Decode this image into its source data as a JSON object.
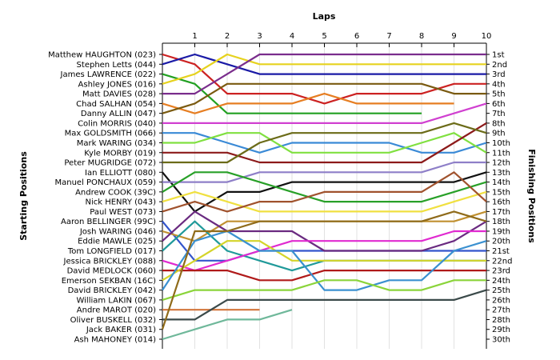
{
  "chart_data": {
    "type": "line",
    "title": "",
    "xlabel": "Laps",
    "ylabel_left": "Starting Positions",
    "ylabel_right": "Finishing Positions",
    "x": [
      0,
      1,
      2,
      3,
      4,
      5,
      6,
      7,
      8,
      9,
      10
    ],
    "x_tick_labels": [
      "1",
      "2",
      "3",
      "4",
      "5",
      "6",
      "7",
      "8",
      "9",
      "10"
    ],
    "ylim": [
      1,
      30
    ],
    "y_inverted": true,
    "grid": true,
    "finishing_labels": [
      "1st",
      "2nd",
      "3rd",
      "4th",
      "5th",
      "6th",
      "7th",
      "8th",
      "9th",
      "10th",
      "11th",
      "12th",
      "13th",
      "14th",
      "15th",
      "16th",
      "17th",
      "18th",
      "19th",
      "20th",
      "21st",
      "22nd",
      "23rd",
      "24th",
      "25th",
      "26th",
      "27th",
      "28th",
      "29th",
      "30th"
    ],
    "series": [
      {
        "name": "Matthew HAUGHTON (023)",
        "color": "#cc2222",
        "positions": [
          1,
          2,
          5,
          5,
          5,
          6,
          5,
          5,
          5,
          4,
          4
        ]
      },
      {
        "name": "Stephen Letts (044)",
        "color": "#1a1aa6",
        "positions": [
          2,
          1,
          2,
          3,
          3,
          3,
          3,
          3,
          3,
          3,
          3
        ]
      },
      {
        "name": "James LAWRENCE (022)",
        "color": "#22a022",
        "positions": [
          3,
          4,
          7,
          7,
          7,
          7,
          7,
          7,
          7
        ]
      },
      {
        "name": "Ashley JONES (016)",
        "color": "#e6d21e",
        "positions": [
          4,
          3,
          1,
          2,
          2,
          2,
          2,
          2,
          2,
          2,
          2
        ]
      },
      {
        "name": "Matt DAVIES (028)",
        "color": "#7a2d8c",
        "positions": [
          5,
          5,
          3,
          1,
          1,
          1,
          1,
          1,
          1,
          1,
          1
        ]
      },
      {
        "name": "Chad SALHAN (054)",
        "color": "#e67e22",
        "positions": [
          6,
          7,
          6,
          6,
          6,
          5,
          6,
          6,
          6,
          6
        ]
      },
      {
        "name": "Danny ALLIN (047)",
        "color": "#7a5a10",
        "positions": [
          7,
          6,
          4,
          4,
          4,
          4,
          4,
          4,
          4,
          5,
          5
        ]
      },
      {
        "name": "Colin MORRIS (040)",
        "color": "#d040d0",
        "positions": [
          8,
          8,
          8,
          8,
          8,
          8,
          8,
          8,
          8,
          7,
          6
        ]
      },
      {
        "name": "Max GOLDSMITH (066)",
        "color": "#3a8ad6",
        "positions": [
          9,
          9,
          10,
          11,
          10,
          10,
          10,
          10,
          11,
          11,
          10
        ]
      },
      {
        "name": "Mark WARING (034)",
        "color": "#80e040",
        "positions": [
          10,
          10,
          9,
          9,
          11,
          11,
          11,
          11,
          10,
          9,
          11
        ]
      },
      {
        "name": "Kyle MORBY (019)",
        "color": "#8c1a1a",
        "positions": [
          11,
          11,
          11,
          12,
          12,
          12,
          12,
          12,
          12,
          10,
          8
        ]
      },
      {
        "name": "Peter MUGRIDGE (072)",
        "color": "#6b6b18",
        "positions": [
          12,
          12,
          12,
          10,
          9,
          9,
          9,
          9,
          9,
          8,
          9
        ]
      },
      {
        "name": "Ian ELLIOTT (080)",
        "color": "#111111",
        "positions": [
          13,
          17,
          15,
          15,
          14,
          14,
          14,
          14,
          14,
          14,
          13
        ]
      },
      {
        "name": "Manuel PONCHAUX (059)",
        "color": "#8e7fc8",
        "positions": [
          14,
          14,
          14,
          13,
          13,
          13,
          13,
          13,
          13,
          12,
          12
        ]
      },
      {
        "name": "Andrew COOK (39C)",
        "color": "#28a028",
        "positions": [
          15,
          13,
          13,
          14,
          15,
          16,
          16,
          16,
          16,
          15,
          14
        ]
      },
      {
        "name": "Nick HENRY (043)",
        "color": "#f0e040",
        "positions": [
          16,
          15,
          16,
          17,
          17,
          17,
          17,
          17,
          17,
          16,
          15
        ]
      },
      {
        "name": "Paul WEST (073)",
        "color": "#a0522d",
        "positions": [
          17,
          16,
          17,
          16,
          16,
          15,
          15,
          15,
          15,
          13,
          16
        ]
      },
      {
        "name": "Aaron BELLINGER (99C)",
        "color": "#3355cc",
        "positions": [
          18,
          22,
          22,
          21,
          21,
          21,
          21,
          21,
          21,
          21,
          21
        ]
      },
      {
        "name": "Josh WARING (046)",
        "color": "#c09030",
        "positions": [
          19,
          20,
          18,
          18,
          18,
          18,
          18,
          18,
          18,
          18,
          17
        ]
      },
      {
        "name": "Eddie MAWLE (025)",
        "color": "#6a2a80",
        "positions": [
          20,
          17,
          19,
          19,
          19,
          21,
          21,
          21,
          21,
          20,
          18
        ]
      },
      {
        "name": "Tom LONGFIELD (017)",
        "color": "#209a9a",
        "positions": [
          21,
          18,
          21,
          22,
          23,
          22,
          22,
          22,
          22,
          22,
          22
        ]
      },
      {
        "name": "Jessica BRICKLEY (088)",
        "color": "#e02ad0",
        "positions": [
          22,
          23,
          22,
          21,
          20,
          20,
          20,
          20,
          20,
          19,
          19
        ]
      },
      {
        "name": "David MEDLOCK (060)",
        "color": "#b01a1a",
        "positions": [
          23,
          23,
          23,
          24,
          24,
          23,
          23,
          23,
          23,
          23,
          23
        ]
      },
      {
        "name": "Emerson SEKBAN (16C)",
        "color": "#d4d42a",
        "positions": [
          24,
          22,
          20,
          20,
          22,
          22,
          22,
          22,
          22,
          22,
          22
        ]
      },
      {
        "name": "David BRICKLEY (042)",
        "color": "#3a90d0",
        "positions": [
          25,
          20,
          19,
          21,
          21,
          25,
          25,
          24,
          24,
          21,
          20
        ]
      },
      {
        "name": "William LAKIN (067)",
        "color": "#8ad43a",
        "positions": [
          26,
          25,
          25,
          25,
          25,
          24,
          24,
          25,
          25,
          24,
          24
        ]
      },
      {
        "name": "Andre MAROT (020)",
        "color": "#d2743a",
        "positions": [
          27,
          27,
          27,
          27
        ]
      },
      {
        "name": "Oliver BUSKELL (032)",
        "color": "#3b4a4a",
        "positions": [
          28,
          28,
          26,
          26,
          26,
          26,
          26,
          26,
          26,
          26,
          25
        ]
      },
      {
        "name": "Jack BAKER (031)",
        "color": "#8f6b1a",
        "positions": [
          29,
          19,
          19,
          18,
          18,
          18,
          18,
          18,
          18,
          17,
          18
        ]
      },
      {
        "name": "Ash MAHONEY (014)",
        "color": "#6fb89a",
        "positions": [
          30,
          29,
          28,
          28,
          27
        ]
      }
    ]
  }
}
